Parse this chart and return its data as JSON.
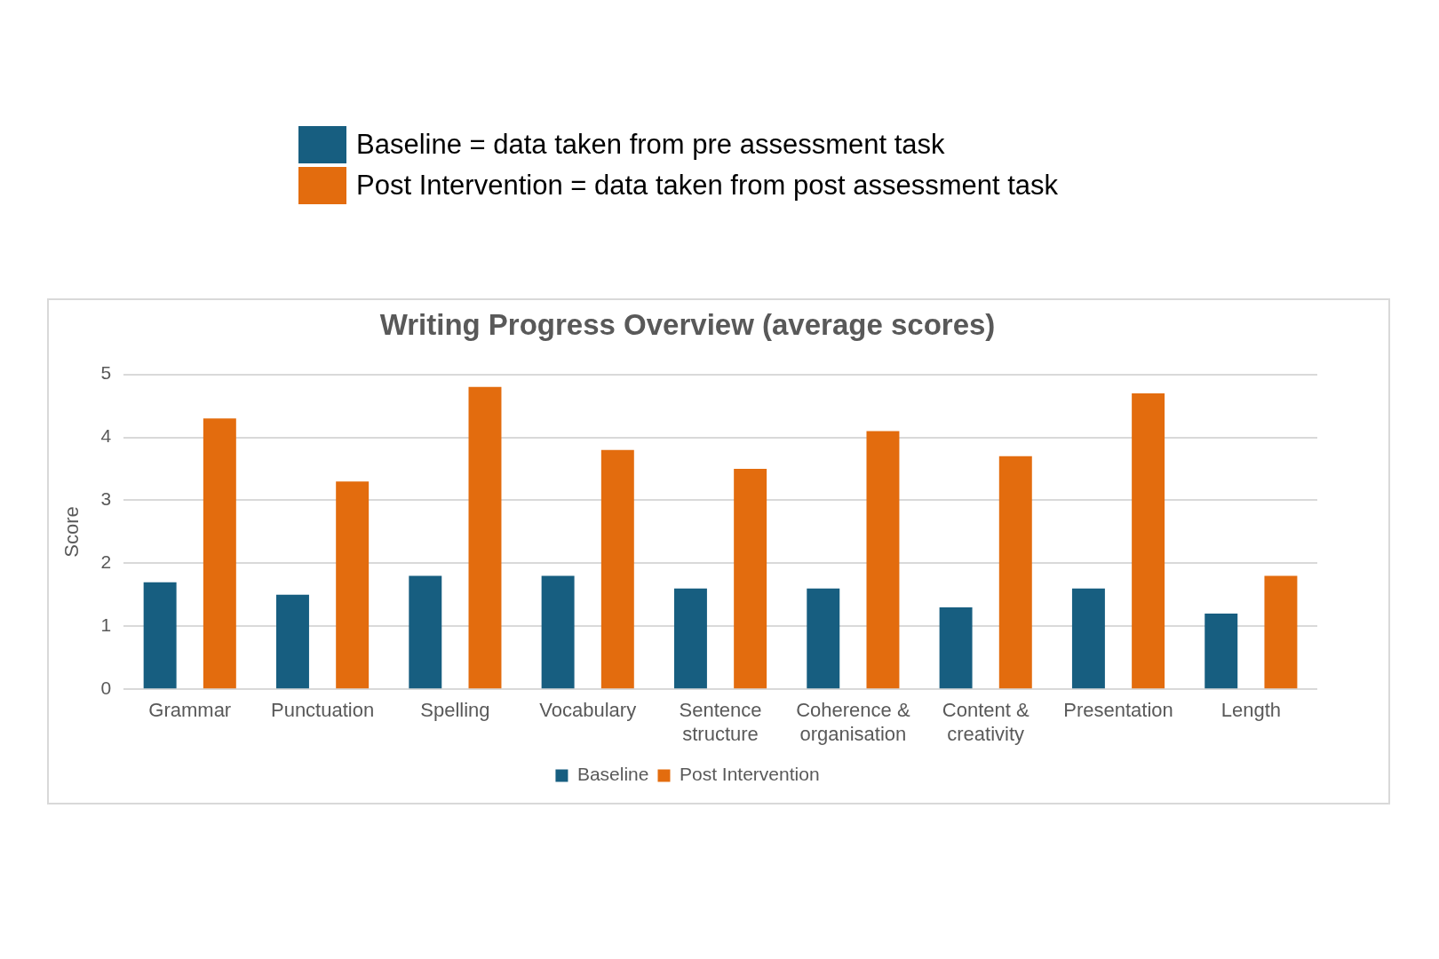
{
  "chart_data": {
    "type": "bar",
    "title": "Writing Progress Overview (average scores)",
    "ylabel": "Score",
    "annotations": [
      "Baseline = data taken from pre assessment task",
      "Post Intervention = data taken from post assessment task"
    ],
    "categories": [
      "Grammar",
      "Punctuation",
      "Spelling",
      "Vocabulary",
      "Sentence structure",
      "Coherence & organisation",
      "Content & creativity",
      "Presentation",
      "Length"
    ],
    "series": [
      {
        "name": "Baseline",
        "color": "#175e80",
        "values": [
          1.7,
          1.5,
          1.8,
          1.8,
          1.6,
          1.6,
          1.3,
          1.6,
          1.2
        ]
      },
      {
        "name": "Post Intervention",
        "color": "#e36c0e",
        "values": [
          4.3,
          3.3,
          4.8,
          3.8,
          3.5,
          4.1,
          3.7,
          4.7,
          1.8
        ]
      }
    ],
    "ylim": [
      0,
      5
    ],
    "yticks": [
      0,
      1,
      2,
      3,
      4,
      5
    ],
    "grid": "y",
    "legend": "bottom"
  }
}
